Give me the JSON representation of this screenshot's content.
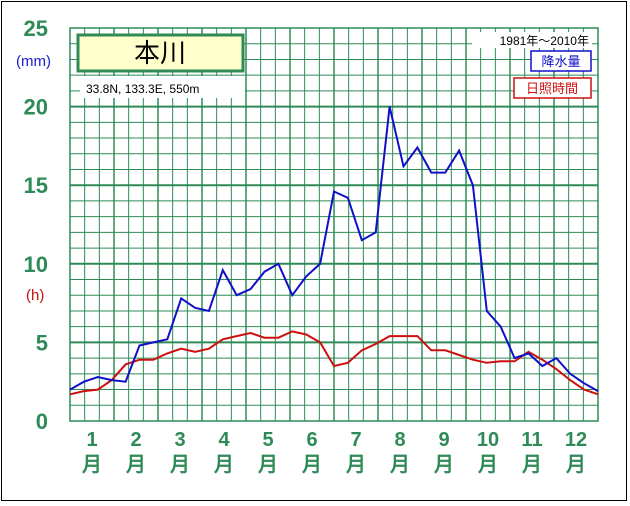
{
  "chart_data": {
    "type": "line",
    "title": "本川",
    "location": "33.8N,  133.3E,  550m",
    "period": "1981年〜2010年",
    "y_unit_left": "(mm)",
    "y_unit_right": "(h)",
    "ylim": [
      0,
      25
    ],
    "yticks": [
      "0",
      "5",
      "10",
      "15",
      "20",
      "25"
    ],
    "months": [
      {
        "num": "1",
        "unit": "月"
      },
      {
        "num": "2",
        "unit": "月"
      },
      {
        "num": "3",
        "unit": "月"
      },
      {
        "num": "4",
        "unit": "月"
      },
      {
        "num": "5",
        "unit": "月"
      },
      {
        "num": "6",
        "unit": "月"
      },
      {
        "num": "7",
        "unit": "月"
      },
      {
        "num": "8",
        "unit": "月"
      },
      {
        "num": "9",
        "unit": "月"
      },
      {
        "num": "10",
        "unit": "月"
      },
      {
        "num": "11",
        "unit": "月"
      },
      {
        "num": "12",
        "unit": "月"
      }
    ],
    "x_units": "period (1 = first half of January, 36 = last third of December)",
    "grid": true,
    "legend_position": "top-right",
    "colors": {
      "grid": "#2e8b57",
      "precip": "#1010c8",
      "sun": "#cc1010",
      "title_bg": "#ffffcc"
    },
    "series": [
      {
        "name": "降水量",
        "color": "#1010c8",
        "values": [
          2.0,
          2.5,
          2.8,
          2.6,
          2.5,
          4.8,
          5.0,
          5.2,
          7.8,
          7.2,
          7.0,
          9.6,
          8.0,
          8.4,
          9.5,
          10.0,
          8.0,
          9.2,
          10.0,
          14.6,
          14.2,
          11.5,
          12.0,
          20.0,
          16.2,
          17.4,
          15.8,
          15.8,
          17.2,
          15.0,
          7.0,
          6.0,
          4.0,
          4.3,
          3.5,
          4.0,
          3.0,
          2.4,
          1.9
        ]
      },
      {
        "name": "日照時間",
        "color": "#cc1010",
        "values": [
          1.7,
          1.9,
          2.0,
          2.6,
          3.6,
          3.9,
          3.9,
          4.3,
          4.6,
          4.4,
          4.6,
          5.2,
          5.4,
          5.6,
          5.3,
          5.3,
          5.7,
          5.5,
          5.0,
          3.5,
          3.7,
          4.5,
          4.9,
          5.4,
          5.4,
          5.4,
          4.5,
          4.5,
          4.2,
          3.9,
          3.7,
          3.8,
          3.8,
          4.4,
          3.9,
          3.3,
          2.6,
          2.0,
          1.7
        ]
      }
    ]
  }
}
